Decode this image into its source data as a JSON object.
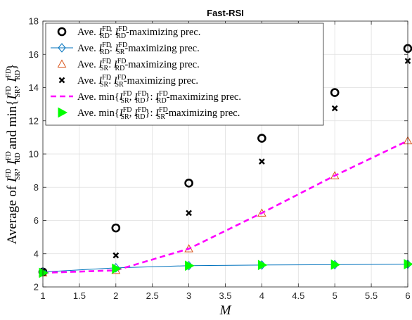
{
  "chart_data": {
    "type": "line",
    "title": "Fast-RSI",
    "xlabel": "M",
    "ylabel": "Average of I_SR^FD, I_RD^FD and min{I_SR^FD, I_RD^FD}",
    "xlim": [
      1,
      6
    ],
    "ylim": [
      2,
      18
    ],
    "xticks": [
      "1",
      "1.5",
      "2",
      "2.5",
      "3",
      "3.5",
      "4",
      "4.5",
      "5",
      "5.5",
      "6"
    ],
    "yticks": [
      "2",
      "4",
      "6",
      "8",
      "10",
      "12",
      "14",
      "16",
      "18"
    ],
    "grid": true,
    "legend_position": "top-left",
    "x": [
      1,
      2,
      3,
      4,
      5,
      6
    ],
    "series": [
      {
        "name": "Ave. I_RD^FD: I_RD^FD-maximizing prec.",
        "marker": "circle",
        "line": "none",
        "color": "#000000",
        "values": [
          2.9,
          5.55,
          8.25,
          10.95,
          13.7,
          16.35
        ]
      },
      {
        "name": "Ave. I_RD^FD: I_SR^FD-maximizing prec.",
        "marker": "diamond",
        "line": "solid",
        "color": "#0072BD",
        "values": [
          2.9,
          3.15,
          3.28,
          3.32,
          3.34,
          3.37
        ]
      },
      {
        "name": "Ave. I_SR^FD: I_RD^FD-maximizing prec.",
        "marker": "triangle",
        "line": "none",
        "color": "#D95319",
        "values": [
          2.85,
          3.0,
          4.3,
          6.45,
          8.7,
          10.8
        ]
      },
      {
        "name": "Ave. I_SR^FD: I_SR^FD-maximizing prec.",
        "marker": "x",
        "line": "none",
        "color": "#000000",
        "values": [
          2.95,
          3.9,
          6.45,
          9.55,
          12.75,
          15.6
        ]
      },
      {
        "name": "Ave. min{I_SR^FD, I_RD^FD}: I_RD^FD-maximizing prec.",
        "marker": "none",
        "line": "dashed",
        "color": "#FF00FF",
        "values": [
          2.85,
          3.0,
          4.3,
          6.45,
          8.7,
          10.8
        ]
      },
      {
        "name": "Ave. min{I_SR^FD, I_RD^FD}: I_SR^FD-maximizing prec.",
        "marker": "triangle-right",
        "line": "none",
        "color": "#00FF00",
        "values": [
          2.85,
          3.1,
          3.28,
          3.32,
          3.34,
          3.37
        ]
      }
    ]
  }
}
